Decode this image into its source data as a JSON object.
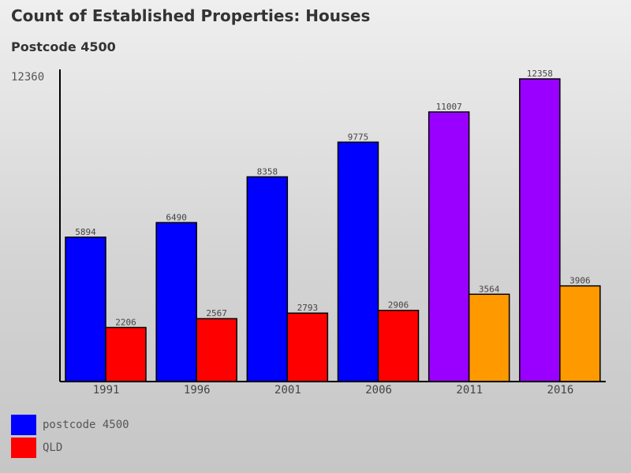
{
  "chart_data": {
    "type": "bar",
    "title": "Count of Established Properties: Houses",
    "subtitle": "Postcode 4500",
    "categories": [
      "1991",
      "1996",
      "2001",
      "2006",
      "2011",
      "2016"
    ],
    "series": [
      {
        "name": "postcode 4500",
        "values": [
          5894,
          6490,
          8358,
          9775,
          11007,
          12358
        ],
        "colors": [
          "#0000ff",
          "#0000ff",
          "#0000ff",
          "#0000ff",
          "#9900ff",
          "#9900ff"
        ]
      },
      {
        "name": "QLD",
        "values": [
          2206,
          2567,
          2793,
          2906,
          3564,
          3906
        ],
        "colors": [
          "#ff0000",
          "#ff0000",
          "#ff0000",
          "#ff0000",
          "#ff9900",
          "#ff9900"
        ]
      }
    ],
    "y_max_label": "12360",
    "ylim": [
      0,
      12360
    ],
    "legend": [
      {
        "label": "postcode 4500",
        "color": "#0000ff"
      },
      {
        "label": "QLD",
        "color": "#ff0000"
      }
    ]
  }
}
